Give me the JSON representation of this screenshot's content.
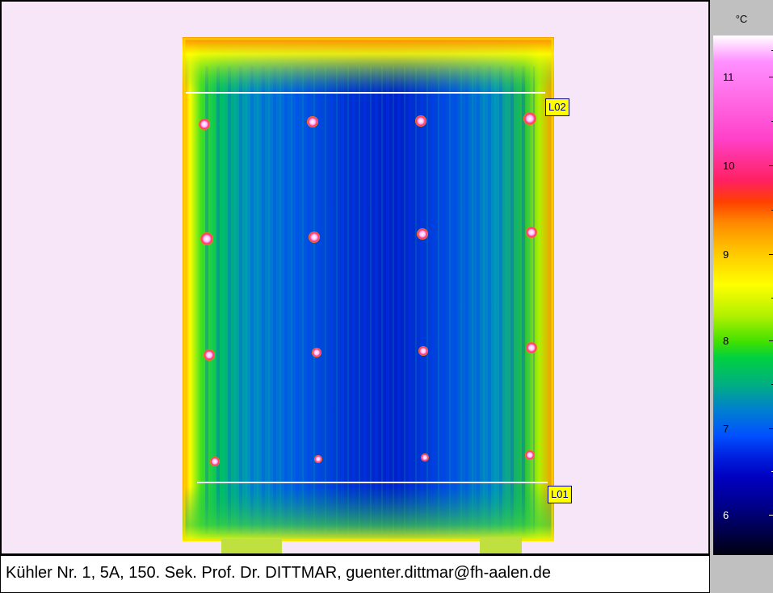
{
  "image": {
    "markers": [
      {
        "id": "L02",
        "label": "L02"
      },
      {
        "id": "L01",
        "label": "L01"
      }
    ]
  },
  "scale": {
    "unit": "°C",
    "ticks": [
      "11",
      "10",
      "9",
      "8",
      "7",
      "6"
    ]
  },
  "caption": {
    "text": "Kühler Nr. 1, 5A, 150. Sek. Prof. Dr. DITTMAR,  guenter.dittmar@fh-aalen.de"
  }
}
